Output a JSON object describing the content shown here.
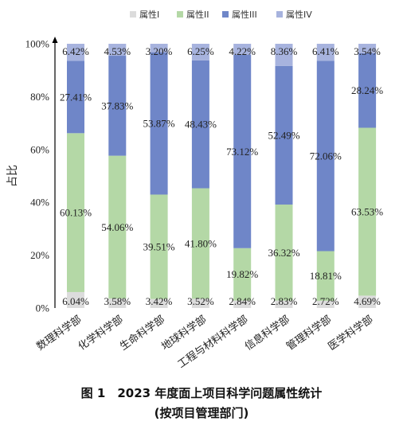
{
  "chart_data": {
    "type": "bar",
    "stacked": true,
    "categories": [
      "数理科学部",
      "化学科学部",
      "生命科学部",
      "地球科学部",
      "工程与材料科学部",
      "信息科学部",
      "管理科学部",
      "医学科学部"
    ],
    "series": [
      {
        "name": "属性I",
        "color": "#dcdcdc",
        "values": [
          6.04,
          3.58,
          3.42,
          3.52,
          2.84,
          2.83,
          2.72,
          4.69
        ],
        "labels": [
          "6.04%",
          "3.58%",
          "3.42%",
          "3.52%",
          "2.84%",
          "2.83%",
          "2.72%",
          "4.69%"
        ]
      },
      {
        "name": "属性II",
        "color": "#b4d8a6",
        "values": [
          60.13,
          54.06,
          39.51,
          41.8,
          19.82,
          36.32,
          18.81,
          63.53
        ],
        "labels": [
          "60.13%",
          "54.06%",
          "39.51%",
          "41.80%",
          "19.82%",
          "36.32%",
          "18.81%",
          "63.53%"
        ]
      },
      {
        "name": "属性III",
        "color": "#6f86c8",
        "values": [
          27.41,
          37.83,
          53.87,
          48.43,
          73.12,
          52.49,
          72.06,
          28.24
        ],
        "labels": [
          "27.41%",
          "37.83%",
          "53.87%",
          "48.43%",
          "73.12%",
          "52.49%",
          "72.06%",
          "28.24%"
        ]
      },
      {
        "name": "属性IV",
        "color": "#a7b3de",
        "values": [
          6.42,
          4.53,
          3.2,
          6.25,
          4.22,
          8.36,
          6.41,
          3.54
        ],
        "labels": [
          "6.42%",
          "4.53%",
          "3.20%",
          "6.25%",
          "4.22%",
          "8.36%",
          "6.41%",
          "3.54%"
        ]
      }
    ],
    "ylabel": "占比",
    "ylim": [
      0,
      100
    ],
    "yticks": [
      "0%",
      "20%",
      "40%",
      "60%",
      "80%",
      "100%"
    ],
    "grid": false,
    "legend": "top"
  },
  "caption": {
    "line1": "图 1　2023 年度面上项目科学问题属性统计",
    "line2": "(按项目管理部门)"
  }
}
